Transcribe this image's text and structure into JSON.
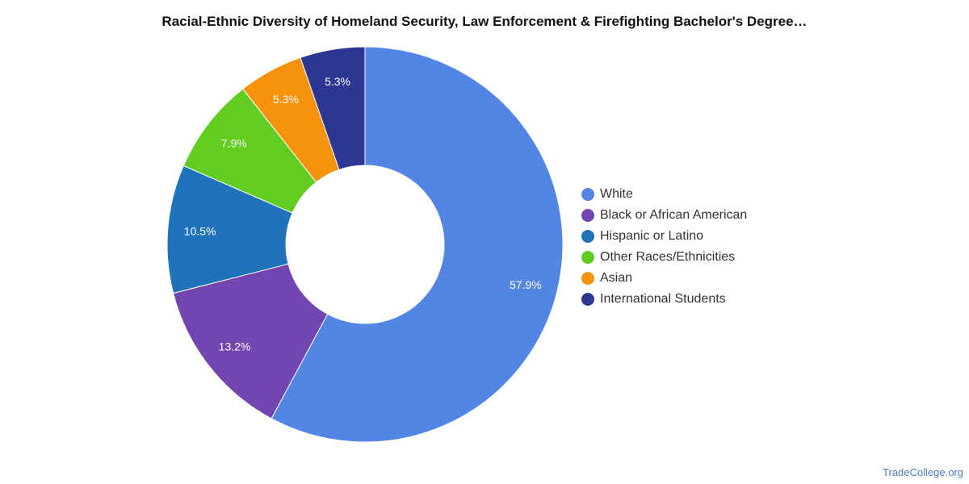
{
  "chart_data": {
    "type": "pie",
    "title": "Racial-Ethnic Diversity of Homeland Security, Law Enforcement & Firefighting Bachelor's Degree…",
    "donut": true,
    "legend_position": "right",
    "categories": [
      "White",
      "Black or African American",
      "Hispanic or Latino",
      "Other Races/Ethnicities",
      "Asian",
      "International Students"
    ],
    "values": [
      57.9,
      13.2,
      10.5,
      7.9,
      5.3,
      5.3
    ],
    "value_labels": [
      "57.9%",
      "13.2%",
      "10.5%",
      "7.9%",
      "5.3%",
      "5.3%"
    ],
    "colors": [
      "#5386e4",
      "#7345b1",
      "#1f73bb",
      "#61cd20",
      "#f7930a",
      "#2d3691"
    ]
  },
  "watermark": "TradeCollege.org"
}
